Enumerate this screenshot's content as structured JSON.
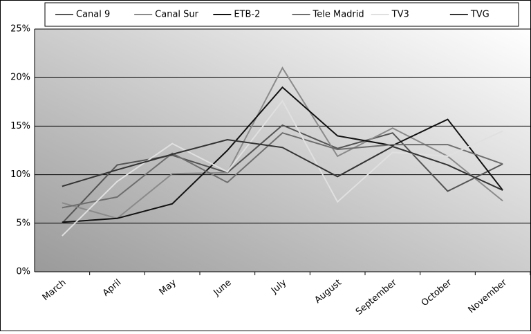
{
  "chart_data": {
    "type": "line",
    "categories": [
      "March",
      "April",
      "May",
      "June",
      "July",
      "August",
      "September",
      "October",
      "November"
    ],
    "series": [
      {
        "name": "Canal 9",
        "color": "#555555",
        "values": [
          5.0,
          11.0,
          12.0,
          10.2,
          15.1,
          12.7,
          14.3,
          8.3,
          11.1
        ]
      },
      {
        "name": "Canal Sur",
        "color": "#8a8a8a",
        "values": [
          7.1,
          5.5,
          10.1,
          10.2,
          21.0,
          11.9,
          14.8,
          11.9,
          7.3
        ]
      },
      {
        "name": "ETB-2",
        "color": "#111111",
        "values": [
          5.1,
          5.5,
          7.0,
          12.5,
          19.0,
          14.0,
          13.0,
          15.7,
          8.4
        ]
      },
      {
        "name": "Tele Madrid",
        "color": "#6e6e6e",
        "values": [
          6.6,
          7.7,
          12.2,
          9.2,
          14.3,
          12.6,
          13.1,
          13.1,
          11.1
        ]
      },
      {
        "name": "TV3",
        "color": "#e0e0e0",
        "values": [
          3.7,
          9.3,
          13.2,
          10.3,
          17.6,
          7.2,
          12.3,
          11.9,
          14.5
        ]
      },
      {
        "name": "TVG",
        "color": "#333333",
        "values": [
          8.8,
          10.5,
          12.1,
          13.6,
          12.8,
          9.8,
          12.9,
          11.0,
          8.4
        ]
      }
    ],
    "ylim": [
      0,
      25
    ],
    "yticks": [
      {
        "value": 0,
        "label": "0%"
      },
      {
        "value": 5,
        "label": "5%"
      },
      {
        "value": 10,
        "label": "10%"
      },
      {
        "value": 15,
        "label": "15%"
      },
      {
        "value": 20,
        "label": "20%"
      },
      {
        "value": 25,
        "label": "25%"
      }
    ],
    "grid": true
  }
}
